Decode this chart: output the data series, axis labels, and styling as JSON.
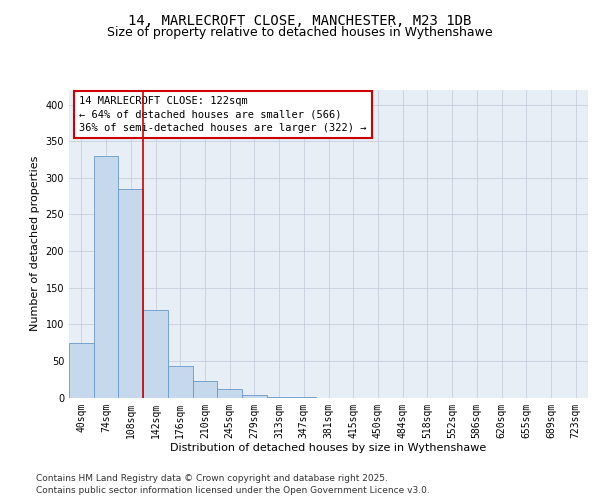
{
  "title_line1": "14, MARLECROFT CLOSE, MANCHESTER, M23 1DB",
  "title_line2": "Size of property relative to detached houses in Wythenshawe",
  "xlabel": "Distribution of detached houses by size in Wythenshawe",
  "ylabel": "Number of detached properties",
  "categories": [
    "40sqm",
    "74sqm",
    "108sqm",
    "142sqm",
    "176sqm",
    "210sqm",
    "245sqm",
    "279sqm",
    "313sqm",
    "347sqm",
    "381sqm",
    "415sqm",
    "450sqm",
    "484sqm",
    "518sqm",
    "552sqm",
    "586sqm",
    "620sqm",
    "655sqm",
    "689sqm",
    "723sqm"
  ],
  "values": [
    74,
    330,
    285,
    120,
    43,
    23,
    12,
    3,
    1,
    1,
    0,
    0,
    0,
    0,
    0,
    0,
    0,
    0,
    0,
    0,
    0
  ],
  "bar_color": "#c5d8ec",
  "bar_edge_color": "#6699cc",
  "vline_x": 2.5,
  "vline_color": "#cc0000",
  "annotation_text": "14 MARLECROFT CLOSE: 122sqm\n← 64% of detached houses are smaller (566)\n36% of semi-detached houses are larger (322) →",
  "annotation_box_color": "#ffffff",
  "annotation_border_color": "#cc0000",
  "ylim": [
    0,
    420
  ],
  "yticks": [
    0,
    50,
    100,
    150,
    200,
    250,
    300,
    350,
    400
  ],
  "background_color": "#ffffff",
  "grid_color": "#c8d0de",
  "footer_text": "Contains HM Land Registry data © Crown copyright and database right 2025.\nContains public sector information licensed under the Open Government Licence v3.0.",
  "title_fontsize": 10,
  "subtitle_fontsize": 9,
  "axis_label_fontsize": 8,
  "tick_fontsize": 7,
  "annotation_fontsize": 7.5,
  "footer_fontsize": 6.5
}
